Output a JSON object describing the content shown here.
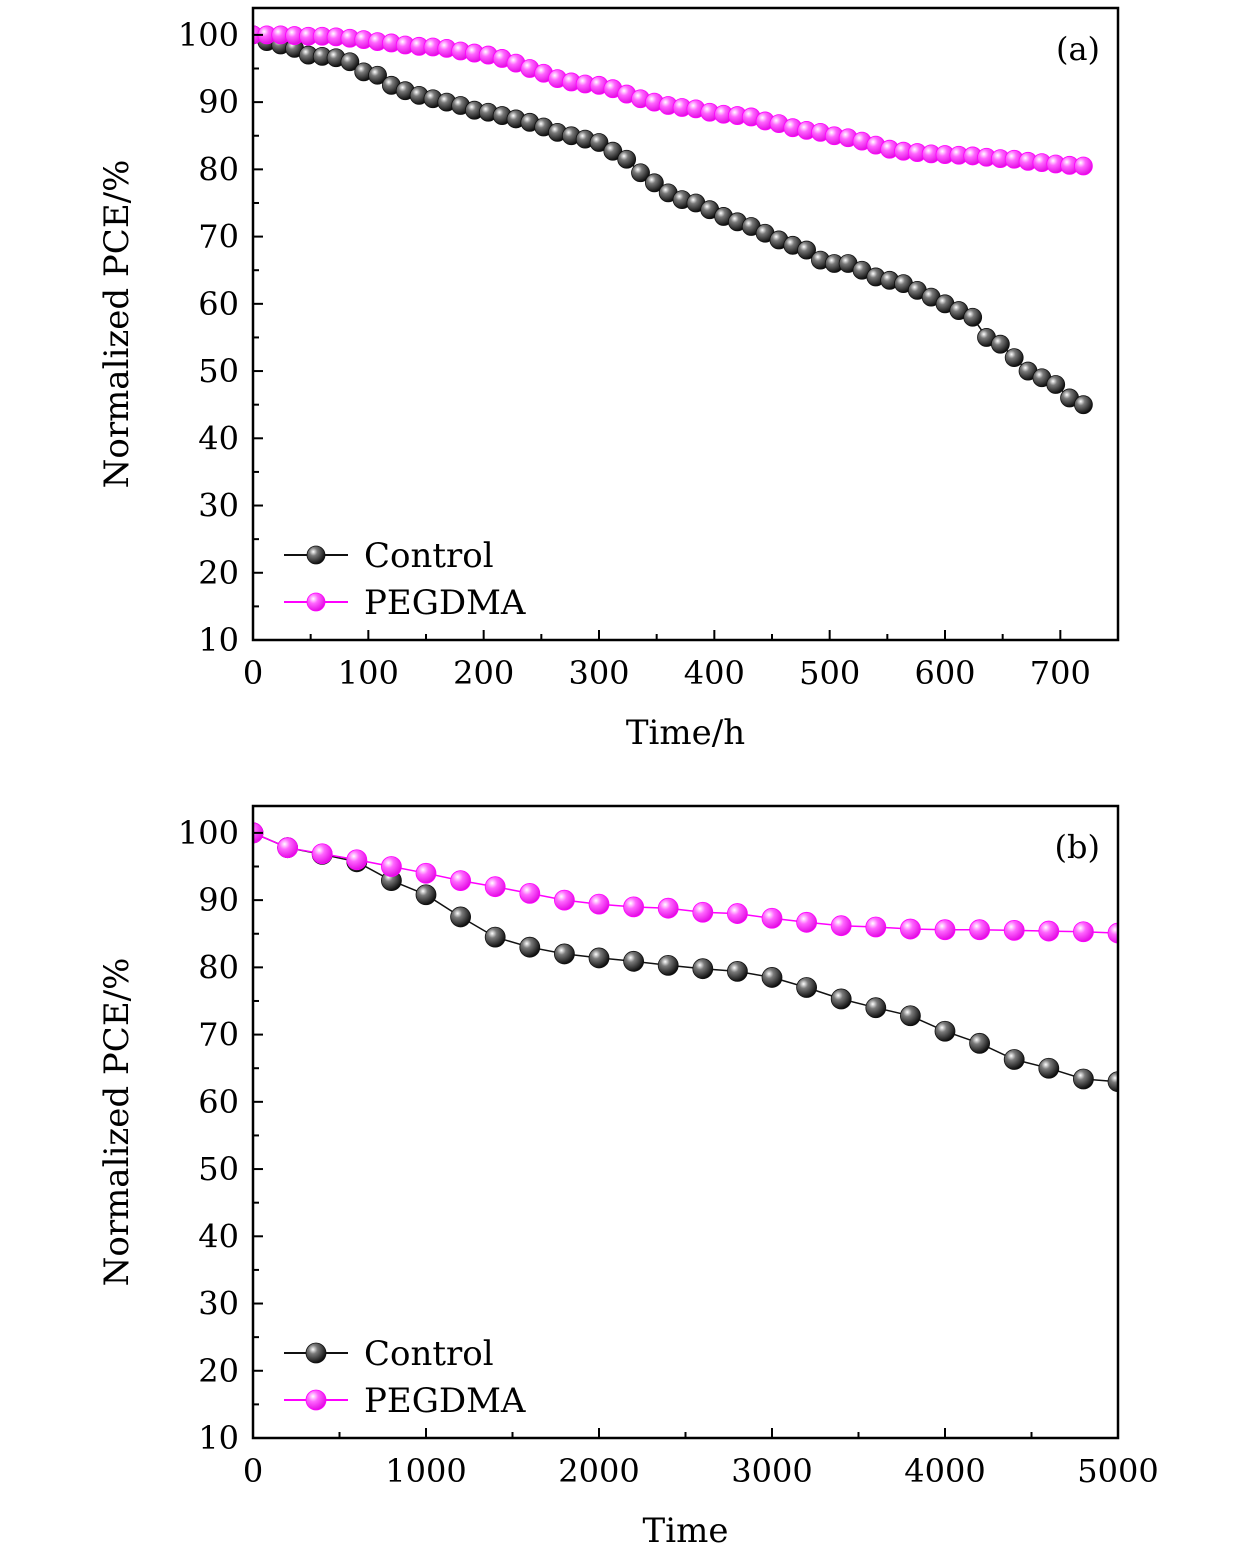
{
  "colors": {
    "control": "#111111",
    "pegdma": "#ff00ff"
  },
  "chart_data": [
    {
      "type": "line",
      "panel_label": "(a)",
      "xlabel": "Time/h",
      "ylabel": "Normalized PCE/%",
      "xlim": [
        0,
        750
      ],
      "ylim": [
        10,
        104
      ],
      "xticks": [
        0,
        100,
        200,
        300,
        400,
        500,
        600,
        700
      ],
      "yticks": [
        10,
        20,
        30,
        40,
        50,
        60,
        70,
        80,
        90,
        100
      ],
      "grid": false,
      "legend_position": "bottom-left",
      "series": [
        {
          "name": "Control",
          "key": "control",
          "x": [
            0,
            12,
            24,
            36,
            48,
            60,
            72,
            84,
            96,
            108,
            120,
            132,
            144,
            156,
            168,
            180,
            192,
            204,
            216,
            228,
            240,
            252,
            264,
            276,
            288,
            300,
            312,
            324,
            336,
            348,
            360,
            372,
            384,
            396,
            408,
            420,
            432,
            444,
            456,
            468,
            480,
            492,
            504,
            516,
            528,
            540,
            552,
            564,
            576,
            588,
            600,
            612,
            624,
            636,
            648,
            660,
            672,
            684,
            696,
            708,
            720
          ],
          "y": [
            100,
            99,
            98.5,
            98,
            97,
            96.8,
            96.6,
            96,
            94.5,
            94,
            92.5,
            91.7,
            91,
            90.5,
            90,
            89.5,
            88.8,
            88.5,
            88,
            87.5,
            87,
            86.3,
            85.5,
            85,
            84.5,
            84,
            82.7,
            81.5,
            79.5,
            78,
            76.5,
            75.5,
            75,
            74,
            73,
            72.2,
            71.5,
            70.5,
            69.5,
            68.7,
            68,
            66.5,
            66,
            66,
            65,
            64,
            63.5,
            63,
            62,
            61,
            60,
            59,
            58,
            55,
            54,
            52,
            50,
            49,
            48,
            46,
            45
          ]
        },
        {
          "name": "PEGDMA",
          "key": "pegdma",
          "x": [
            0,
            12,
            24,
            36,
            48,
            60,
            72,
            84,
            96,
            108,
            120,
            132,
            144,
            156,
            168,
            180,
            192,
            204,
            216,
            228,
            240,
            252,
            264,
            276,
            288,
            300,
            312,
            324,
            336,
            348,
            360,
            372,
            384,
            396,
            408,
            420,
            432,
            444,
            456,
            468,
            480,
            492,
            504,
            516,
            528,
            540,
            552,
            564,
            576,
            588,
            600,
            612,
            624,
            636,
            648,
            660,
            672,
            684,
            696,
            708,
            720
          ],
          "y": [
            100,
            100,
            100,
            99.9,
            99.8,
            99.8,
            99.7,
            99.5,
            99.3,
            99,
            98.8,
            98.5,
            98.3,
            98.2,
            98,
            97.6,
            97.3,
            97,
            96.5,
            95.8,
            95,
            94.3,
            93.5,
            93,
            92.7,
            92.5,
            92,
            91.2,
            90.5,
            90,
            89.5,
            89.2,
            89,
            88.5,
            88.2,
            88,
            87.8,
            87.2,
            86.8,
            86.2,
            85.8,
            85.5,
            85,
            84.7,
            84.2,
            83.6,
            83,
            82.7,
            82.5,
            82.3,
            82.2,
            82.1,
            82,
            81.8,
            81.6,
            81.5,
            81.2,
            81,
            80.8,
            80.6,
            80.5
          ]
        }
      ]
    },
    {
      "type": "line",
      "panel_label": "(b)",
      "xlabel": "Time",
      "ylabel": "Normalized PCE/%",
      "xlim": [
        0,
        5000
      ],
      "ylim": [
        10,
        104
      ],
      "xticks": [
        0,
        1000,
        2000,
        3000,
        4000,
        5000
      ],
      "yticks": [
        10,
        20,
        30,
        40,
        50,
        60,
        70,
        80,
        90,
        100
      ],
      "grid": false,
      "legend_position": "bottom-left",
      "series": [
        {
          "name": "Control",
          "key": "control",
          "x": [
            0,
            200,
            400,
            600,
            800,
            1000,
            1200,
            1400,
            1600,
            1800,
            2000,
            2200,
            2400,
            2600,
            2800,
            3000,
            3200,
            3400,
            3600,
            3800,
            4000,
            4200,
            4400,
            4600,
            4800,
            5000
          ],
          "y": [
            100,
            97.8,
            96.8,
            95.7,
            92.9,
            90.8,
            87.5,
            84.5,
            83,
            82,
            81.4,
            80.9,
            80.3,
            79.8,
            79.4,
            78.5,
            77,
            75.3,
            74,
            72.8,
            70.5,
            68.7,
            66.3,
            65,
            63.4,
            63
          ]
        },
        {
          "name": "PEGDMA",
          "key": "pegdma",
          "x": [
            0,
            200,
            400,
            600,
            800,
            1000,
            1200,
            1400,
            1600,
            1800,
            2000,
            2200,
            2400,
            2600,
            2800,
            3000,
            3200,
            3400,
            3600,
            3800,
            4000,
            4200,
            4400,
            4600,
            4800,
            5000
          ],
          "y": [
            100,
            97.8,
            96.9,
            96,
            95,
            94,
            92.9,
            92,
            91,
            90,
            89.4,
            89,
            88.8,
            88.2,
            88,
            87.3,
            86.7,
            86.2,
            86,
            85.7,
            85.6,
            85.6,
            85.5,
            85.4,
            85.3,
            85.1
          ]
        }
      ]
    }
  ]
}
